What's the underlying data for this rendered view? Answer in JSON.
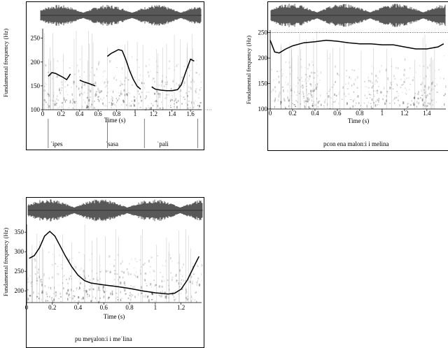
{
  "chart_data": [
    {
      "type": "line",
      "ylabel": "Fundamental frequency (Hz)",
      "xlabel": "Time (s)",
      "yticks": [
        100,
        150,
        200,
        250
      ],
      "xticks": [
        "0",
        "0.2",
        "0.4",
        "0.6",
        "0.8",
        "1",
        "1.2",
        "1.4",
        "1.6"
      ],
      "ylim": [
        100,
        270
      ],
      "xlim": [
        0,
        1.72
      ],
      "reference_line_hz": 100,
      "syllables": [
        "ˈipes",
        "ˈsasa",
        "ˈpali"
      ],
      "syllable_x": [
        0.15,
        0.75,
        1.3
      ],
      "boundaries": [
        0.06,
        0.7,
        1.1,
        1.68
      ],
      "f0_segments": [
        {
          "x": [
            0.06,
            0.1,
            0.14,
            0.18,
            0.22,
            0.26,
            0.3
          ],
          "y": [
            170,
            178,
            176,
            172,
            168,
            163,
            175
          ]
        },
        {
          "x": [
            0.4,
            0.45,
            0.5,
            0.54,
            0.57
          ],
          "y": [
            162,
            158,
            155,
            152,
            150
          ]
        },
        {
          "x": [
            0.7,
            0.74,
            0.78,
            0.82,
            0.86,
            0.9,
            0.94,
            0.98,
            1.02,
            1.06
          ],
          "y": [
            212,
            218,
            222,
            226,
            224,
            205,
            182,
            164,
            150,
            143
          ]
        },
        {
          "x": [
            1.18,
            1.22,
            1.28,
            1.34,
            1.4,
            1.46,
            1.5,
            1.55,
            1.6,
            1.64
          ],
          "y": [
            148,
            143,
            141,
            140,
            140,
            142,
            152,
            180,
            206,
            202
          ]
        }
      ]
    },
    {
      "type": "line",
      "ylabel": "Fundamental frequency (Hz)",
      "xlabel": "Time (s)",
      "yticks": [
        100,
        150,
        200,
        250
      ],
      "xticks": [
        "0",
        "0.2",
        "0.4",
        "0.6",
        "0.8",
        "1",
        "1.2",
        "1.4"
      ],
      "ylim": [
        100,
        255
      ],
      "xlim": [
        0,
        1.57
      ],
      "reference_line_hz": 250,
      "caption": "pcon ena malonːi i melina",
      "f0_segments": [
        {
          "x": [
            0.0,
            0.04,
            0.08,
            0.14,
            0.2,
            0.3,
            0.4,
            0.5,
            0.6,
            0.7,
            0.8,
            0.9,
            1.0,
            1.1,
            1.2,
            1.3,
            1.4,
            1.5,
            1.55
          ],
          "y": [
            235,
            212,
            210,
            218,
            224,
            230,
            232,
            235,
            233,
            230,
            228,
            228,
            226,
            226,
            222,
            218,
            218,
            222,
            228
          ]
        }
      ]
    },
    {
      "type": "line",
      "ylabel": "Fundamental frequency (Hz)",
      "xlabel": "Time (s)",
      "yticks": [
        200,
        250,
        300,
        350
      ],
      "xticks": [
        "0",
        "0.2",
        "0.4",
        "0.6",
        "0.8",
        "1",
        "1.2"
      ],
      "ylim": [
        170,
        370
      ],
      "xlim": [
        0,
        1.36
      ],
      "caption": "pu meɣalonːi i meˈlina",
      "f0_segments": [
        {
          "x": [
            0.02,
            0.06,
            0.1,
            0.14,
            0.18,
            0.22,
            0.26,
            0.3,
            0.35,
            0.4,
            0.45,
            0.5,
            0.6,
            0.7,
            0.8,
            0.9,
            1.0,
            1.1,
            1.15,
            1.2,
            1.25,
            1.3,
            1.34
          ],
          "y": [
            283,
            290,
            310,
            340,
            352,
            340,
            315,
            290,
            262,
            240,
            226,
            220,
            215,
            211,
            206,
            200,
            195,
            192,
            194,
            204,
            228,
            262,
            288
          ]
        }
      ]
    }
  ]
}
